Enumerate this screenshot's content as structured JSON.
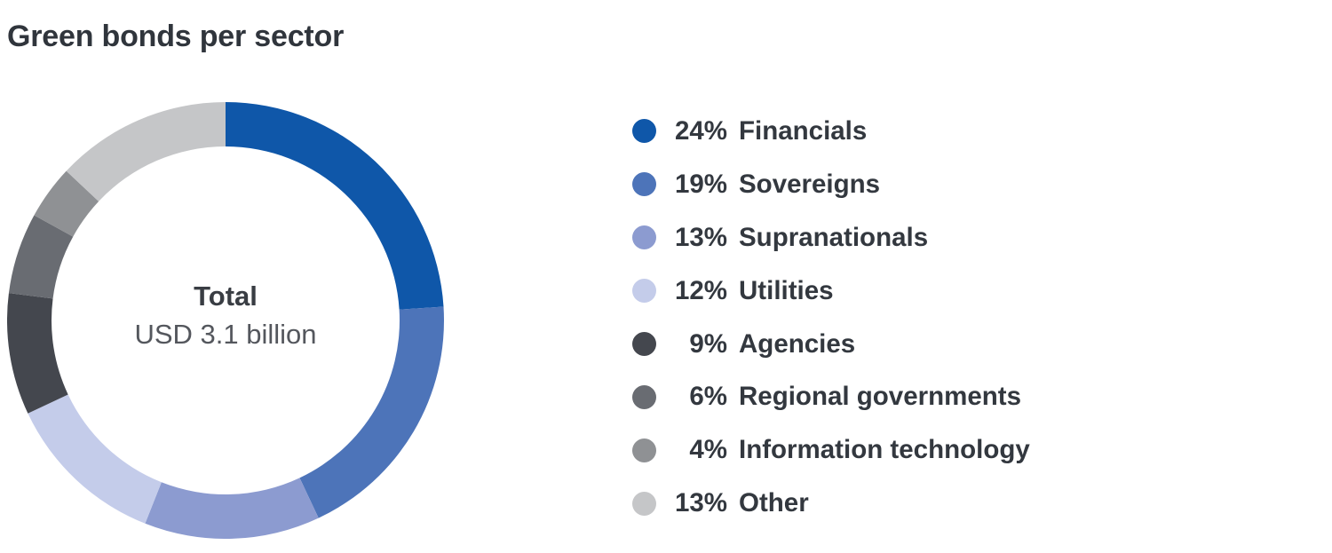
{
  "title": "Green bonds per sector",
  "donut": {
    "center_label": "Total",
    "center_value": "USD 3.1 billion"
  },
  "chart_data": {
    "type": "pie",
    "donut": true,
    "title": "Green bonds per sector",
    "total_label": "Total",
    "total_value": "USD 3.1 billion",
    "start_angle_deg": 0,
    "direction": "clockwise",
    "legend_position": "right",
    "segments": [
      {
        "label": "Financials",
        "value": 24,
        "pct_text": "24%",
        "color": "#0F57A9"
      },
      {
        "label": "Sovereigns",
        "value": 19,
        "pct_text": "19%",
        "color": "#4D74B9"
      },
      {
        "label": "Supranationals",
        "value": 13,
        "pct_text": "13%",
        "color": "#8C9BD0"
      },
      {
        "label": "Utilities",
        "value": 12,
        "pct_text": "12%",
        "color": "#C4CCEA"
      },
      {
        "label": "Agencies",
        "value": 9,
        "pct_text": "9%",
        "color": "#44474E"
      },
      {
        "label": "Regional governments",
        "value": 6,
        "pct_text": "6%",
        "color": "#696C72"
      },
      {
        "label": "Information technology",
        "value": 4,
        "pct_text": "4%",
        "color": "#8F9194"
      },
      {
        "label": "Other",
        "value": 13,
        "pct_text": "13%",
        "color": "#C5C6C8"
      }
    ]
  }
}
